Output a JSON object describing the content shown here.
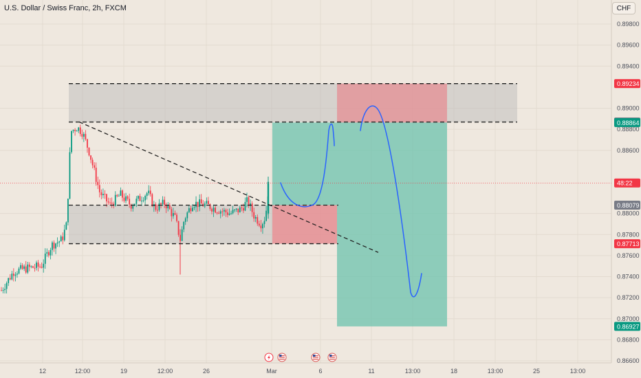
{
  "header": {
    "title": "U.S. Dollar / Swiss Franc, 2h, FXCM",
    "currency": "CHF"
  },
  "colors": {
    "background": "#efe8df",
    "candle_up": "#089981",
    "candle_down": "#f23645",
    "zone_gray": "#b8b8b8",
    "target_green": "#6cc3ad",
    "stop_red": "#e48d93",
    "drawing_blue": "#2962ff",
    "dashed_line": "#1e1e1e"
  },
  "chart_data": {
    "type": "candlestick",
    "symbol": "USDCHF",
    "timeframe": "2h",
    "ylim": [
      0.8654,
      0.8993
    ],
    "x_ticks": [
      "12",
      "12:00",
      "19",
      "12:00",
      "26",
      "Mar",
      "6",
      "11",
      "13:00",
      "18",
      "13:00",
      "25",
      "13:00"
    ],
    "y_ticks": [
      "0.89800",
      "0.89600",
      "0.89400",
      "0.89000",
      "0.88800",
      "0.88600",
      "0.88000",
      "0.87800",
      "0.87600",
      "0.87400",
      "0.87200",
      "0.87000",
      "0.86800",
      "0.86600"
    ],
    "price_labels": [
      {
        "value": 0.89234,
        "text": "0.89234",
        "color": "#f23645"
      },
      {
        "value": 0.88869,
        "text": "0.88869",
        "color": "#787b86"
      },
      {
        "value": 0.88864,
        "text": "0.88864",
        "color": "#089981"
      },
      {
        "value": 0.8829,
        "text": "48:22",
        "color": "#f23645"
      },
      {
        "value": 0.88079,
        "text": "0.88079",
        "color": "#787b86"
      },
      {
        "value": 0.87713,
        "text": "0.87713",
        "color": "#f23645"
      },
      {
        "value": 0.86927,
        "text": "0.86927",
        "color": "#089981"
      }
    ],
    "zones": {
      "resistance": [
        0.88869,
        0.89234
      ],
      "support": [
        0.87713,
        0.88079
      ]
    },
    "short_position": {
      "entry": 0.88864,
      "stop": 0.89234,
      "target": 0.86927
    },
    "long_position": {
      "entry": 0.88079,
      "stop": 0.87713,
      "target": 0.88864
    }
  },
  "events": [
    {
      "icon": "lightning-icon"
    },
    {
      "icon": "us-flag-icon"
    },
    {
      "icon": "us-flag-icon"
    },
    {
      "icon": "us-flag-icon"
    }
  ]
}
